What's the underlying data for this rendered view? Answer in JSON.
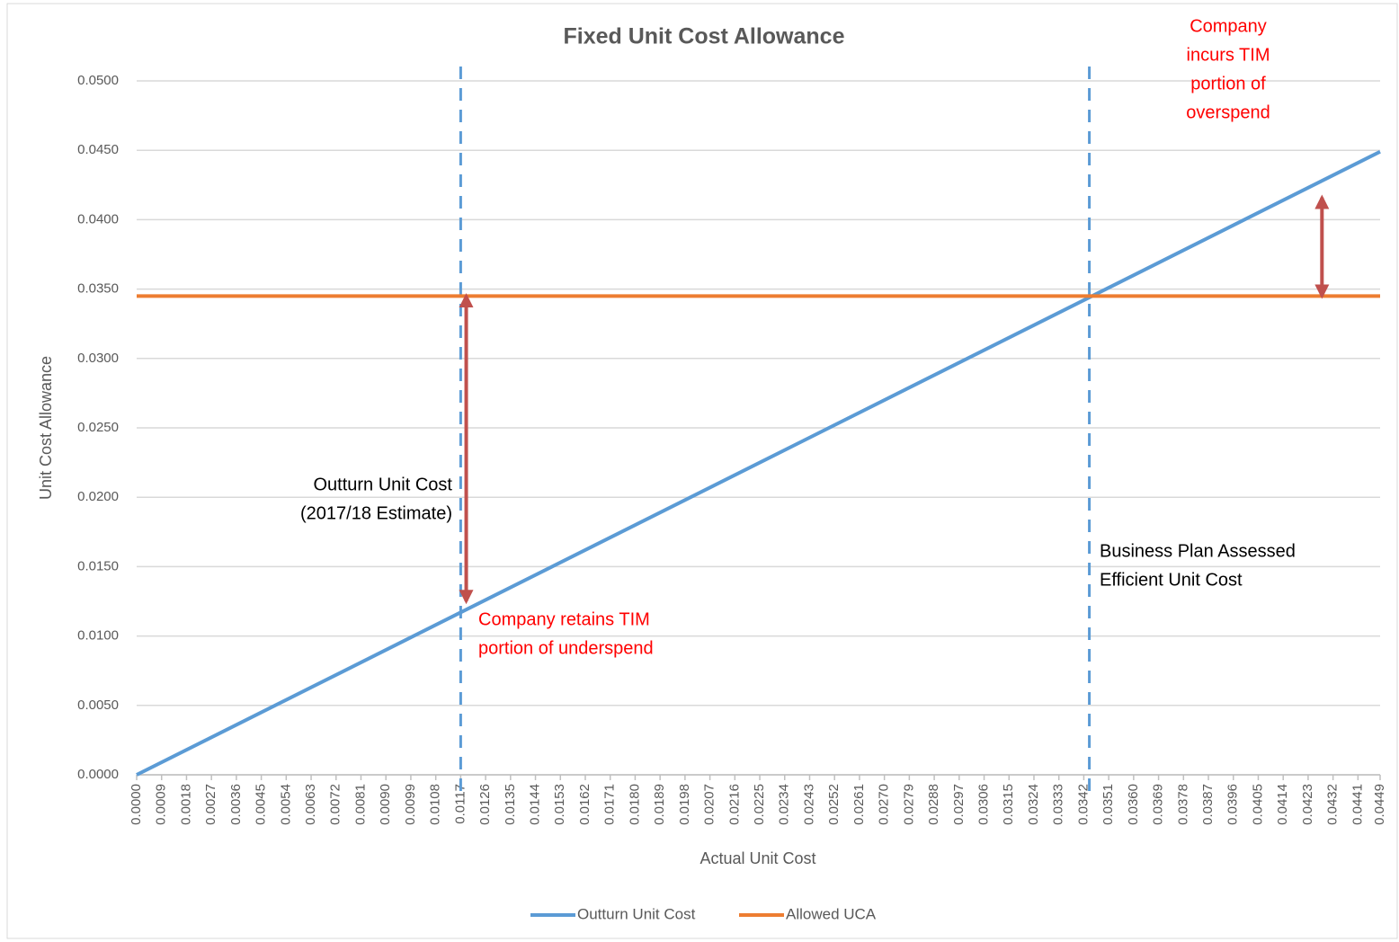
{
  "chart_data": {
    "type": "line",
    "title": "Fixed Unit Cost Allowance",
    "xlabel": "Actual Unit Cost",
    "ylabel": "Unit Cost Allowance",
    "x": [
      0,
      0.0449
    ],
    "series": [
      {
        "name": "Outturn Unit Cost",
        "color": "#5b9bd5",
        "values": [
          0,
          0.0449
        ]
      },
      {
        "name": "Allowed UCA",
        "color": "#ed7d31",
        "values": [
          0.0345,
          0.0345
        ]
      }
    ],
    "xlim": [
      0,
      0.0449
    ],
    "ylim": [
      0,
      0.05
    ],
    "yticks": [
      {
        "value": 0,
        "label": "0.0000"
      },
      {
        "value": 0.005,
        "label": "0.0050"
      },
      {
        "value": 0.01,
        "label": "0.0100"
      },
      {
        "value": 0.015,
        "label": "0.0150"
      },
      {
        "value": 0.02,
        "label": "0.0200"
      },
      {
        "value": 0.025,
        "label": "0.0250"
      },
      {
        "value": 0.03,
        "label": "0.0300"
      },
      {
        "value": 0.035,
        "label": "0.0350"
      },
      {
        "value": 0.04,
        "label": "0.0400"
      },
      {
        "value": 0.045,
        "label": "0.0450"
      },
      {
        "value": 0.05,
        "label": "0.0500"
      }
    ],
    "xticks": [
      {
        "value": 0,
        "label": "0.0000"
      },
      0.0009,
      0.0018,
      0.0027,
      0.0036,
      0.0045,
      0.0054,
      0.0063,
      0.0072,
      0.0081,
      {
        "value": 0.009,
        "label": "0.0090"
      },
      0.0099,
      0.0108,
      0.0117,
      0.0126,
      0.0135,
      0.0144,
      0.0153,
      0.0162,
      0.0171,
      {
        "value": 0.018,
        "label": "0.0180"
      },
      0.0189,
      0.0198,
      0.0207,
      0.0216,
      0.0225,
      0.0234,
      0.0243,
      0.0252,
      0.0261,
      {
        "value": 0.027,
        "label": "0.0270"
      },
      0.0279,
      0.0288,
      0.0297,
      0.0306,
      0.0315,
      0.0324,
      0.0333,
      0.0342,
      0.0351,
      {
        "value": 0.036,
        "label": "0.0360"
      },
      0.0369,
      0.0378,
      0.0387,
      0.0396,
      0.0405,
      0.0414,
      0.0423,
      0.0432,
      0.0441,
      0.0449
    ],
    "grid": true,
    "legend": "bottom",
    "vlines": [
      0.0117,
      0.0344
    ],
    "arrows": [
      {
        "x": 0.0119,
        "from": 0.0125,
        "to": 0.0345
      },
      {
        "x": 0.0428,
        "from": 0.0345,
        "to": 0.0416
      }
    ],
    "annotations": [
      {
        "lines": [
          "Outturn Unit Cost",
          "(2017/18 Estimate)"
        ],
        "color": "#000000"
      },
      {
        "lines": [
          "Company retains TIM",
          "portion of underspend"
        ],
        "color": "#ff0000"
      },
      {
        "lines": [
          "Business Plan Assessed",
          "Efficient Unit Cost"
        ],
        "color": "#000000"
      },
      {
        "lines": [
          "Company",
          "incurs TIM",
          "portion of",
          "overspend"
        ],
        "color": "#ff0000"
      }
    ]
  }
}
